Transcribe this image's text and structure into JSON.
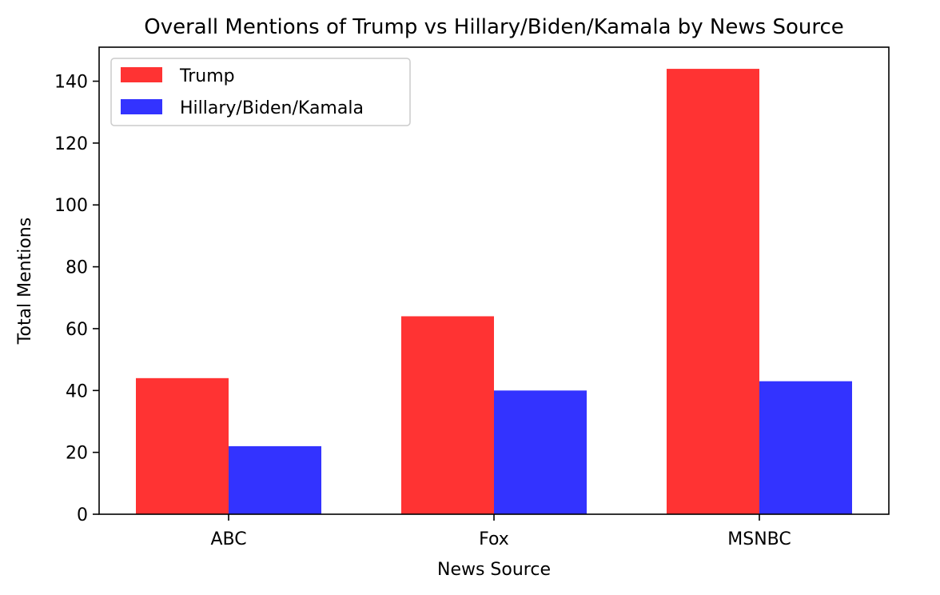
{
  "chart_data": {
    "type": "bar",
    "title": "Overall Mentions of Trump vs Hillary/Biden/Kamala by News Source",
    "xlabel": "News Source",
    "ylabel": "Total Mentions",
    "categories": [
      "ABC",
      "Fox",
      "MSNBC"
    ],
    "series": [
      {
        "name": "Trump",
        "color": "#ff3333",
        "values": [
          44,
          64,
          144
        ]
      },
      {
        "name": "Hillary/Biden/Kamala",
        "color": "#3333ff",
        "values": [
          22,
          40,
          43
        ]
      }
    ],
    "ylim": [
      0,
      151
    ],
    "yticks": [
      0,
      20,
      40,
      60,
      80,
      100,
      120,
      140
    ],
    "grid": false,
    "legend_position": "top-left"
  }
}
